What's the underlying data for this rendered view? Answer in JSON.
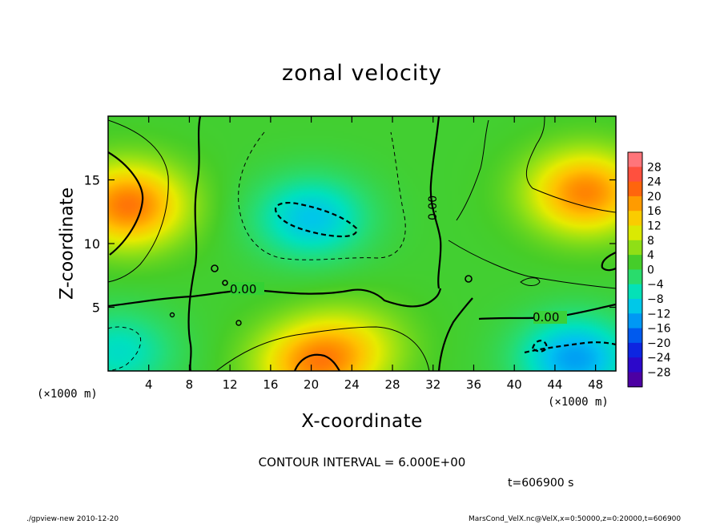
{
  "chart_data": {
    "type": "heatmap",
    "title": "zonal velocity",
    "xlabel": "X-coordinate",
    "ylabel": "Z-coordinate",
    "x_unit": "(×1000 m)",
    "xlim": [
      0,
      50
    ],
    "ylim": [
      0,
      20
    ],
    "x_ticks": [
      4,
      8,
      12,
      16,
      20,
      24,
      28,
      32,
      36,
      40,
      44,
      48
    ],
    "y_ticks": [
      5,
      10,
      15
    ],
    "colorbar": {
      "levels": [
        28,
        24,
        20,
        16,
        12,
        8,
        4,
        0,
        -4,
        -8,
        -12,
        -16,
        -20,
        -24,
        -28
      ],
      "range": [
        -30,
        30
      ]
    },
    "contour_interval": "CONTOUR INTERVAL = 6.000E+00",
    "contour_labels": [
      "0.00",
      "0.00",
      "0.00"
    ],
    "features": [
      {
        "x": 2,
        "z": 13,
        "value": 18
      },
      {
        "x": 47,
        "z": 14,
        "value": 17
      },
      {
        "x": 20,
        "z": 12,
        "value": -11
      },
      {
        "x": 46,
        "z": 1,
        "value": -14
      },
      {
        "x": 20,
        "z": 0.5,
        "value": 14
      },
      {
        "x": 24,
        "z": 2,
        "value": 7
      },
      {
        "x": 1,
        "z": 1.5,
        "value": -8
      }
    ]
  },
  "time_label": "t=606900  s",
  "footer": {
    "left": "./gpview-new   2010-12-20",
    "right": "MarsCond_VelX.nc@VelX,x=0:50000,z=0:20000,t=606900"
  }
}
